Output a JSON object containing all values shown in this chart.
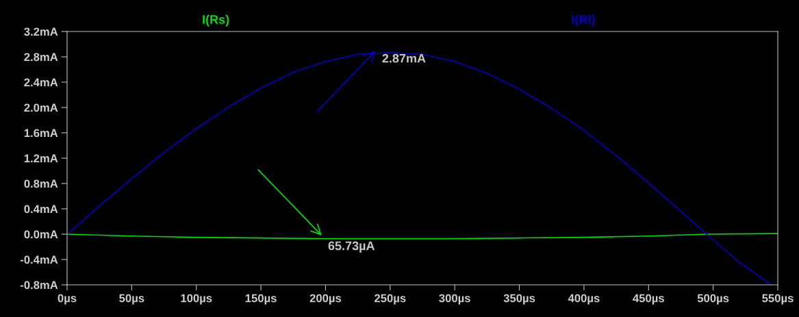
{
  "chart_data": {
    "type": "line",
    "x": [
      0,
      25,
      50,
      75,
      100,
      125,
      150,
      175,
      200,
      225,
      250,
      275,
      300,
      325,
      350,
      375,
      400,
      425,
      450,
      475,
      495,
      520,
      545
    ],
    "series": [
      {
        "name": "I(Rs)",
        "color": "#00e000",
        "x": [
          0,
          50,
          100,
          150,
          200,
          250,
          300,
          350,
          400,
          450,
          495,
          550
        ],
        "values": [
          0,
          -0.03,
          -0.05,
          -0.06,
          -0.07,
          -0.07,
          -0.07,
          -0.06,
          -0.05,
          -0.03,
          0,
          0.01
        ]
      },
      {
        "name": "I(Rl)",
        "color": "#0000c8",
        "values": [
          0,
          0.45,
          0.88,
          1.29,
          1.67,
          2.01,
          2.31,
          2.56,
          2.73,
          2.84,
          2.87,
          2.84,
          2.73,
          2.54,
          2.29,
          1.99,
          1.64,
          1.24,
          0.81,
          0.36,
          0.0,
          -0.44,
          -0.8
        ]
      }
    ],
    "annotations": [
      "2.87mA",
      "65.73µA"
    ],
    "xlim": [
      0,
      550
    ],
    "xticks": [
      {
        "value": 0,
        "label": "0µs"
      },
      {
        "value": 50,
        "label": "50µs"
      },
      {
        "value": 100,
        "label": "100µs"
      },
      {
        "value": 150,
        "label": "150µs"
      },
      {
        "value": 200,
        "label": "200µs"
      },
      {
        "value": 250,
        "label": "250µs"
      },
      {
        "value": 300,
        "label": "300µs"
      },
      {
        "value": 350,
        "label": "350µs"
      },
      {
        "value": 400,
        "label": "400µs"
      },
      {
        "value": 450,
        "label": "450µs"
      },
      {
        "value": 500,
        "label": "500µs"
      },
      {
        "value": 550,
        "label": "550µs"
      }
    ],
    "ylim": [
      -0.8,
      3.2
    ],
    "yticks": [
      {
        "value": 3.2,
        "label": "3.2mA"
      },
      {
        "value": 2.8,
        "label": "2.8mA"
      },
      {
        "value": 2.4,
        "label": "2.4mA"
      },
      {
        "value": 2.0,
        "label": "2.0mA"
      },
      {
        "value": 1.6,
        "label": "1.6mA"
      },
      {
        "value": 1.2,
        "label": "1.2mA"
      },
      {
        "value": 0.8,
        "label": "0.8mA"
      },
      {
        "value": 0.4,
        "label": "0.4mA"
      },
      {
        "value": 0.0,
        "label": "0.0mA"
      },
      {
        "value": -0.4,
        "label": "-0.4mA"
      },
      {
        "value": -0.8,
        "label": "-0.8mA"
      }
    ],
    "grid": false,
    "legend": "top",
    "marker": "none",
    "line_style": "solid"
  }
}
